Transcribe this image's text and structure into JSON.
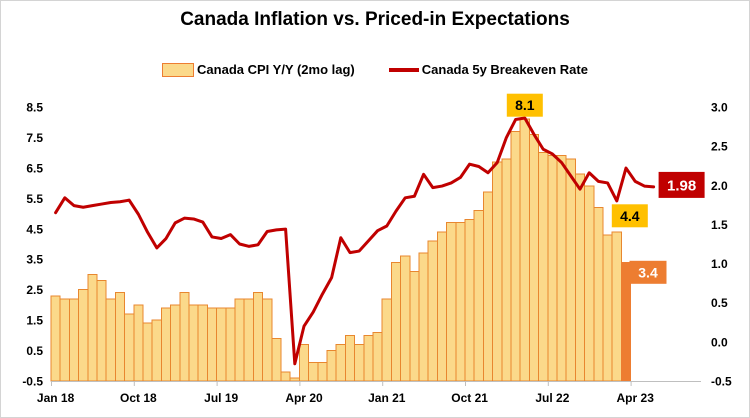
{
  "title": "Canada Inflation vs. Priced-in Expectations",
  "legend": [
    {
      "label": "Canada CPI Y/Y (2mo lag)",
      "type": "bar"
    },
    {
      "label": "Canada 5y Breakeven Rate",
      "type": "line"
    }
  ],
  "colors": {
    "bar_fill": "#FBD98A",
    "bar_border": "#E8872F",
    "bar_highlight": "#ED7D31",
    "line": "#C00000",
    "gold_label_bg": "#FFC000",
    "axis_line": "#BFBFBF",
    "text": "#000000",
    "white": "#FFFFFF"
  },
  "chart_data": {
    "type": "bar+line combo, monthly",
    "title": "Canada Inflation vs. Priced-in Expectations",
    "x_tick_labels": [
      "Jan 18",
      "Oct 18",
      "Jul 19",
      "Apr 20",
      "Jan 21",
      "Oct 21",
      "Jul 22",
      "Apr 23"
    ],
    "x_ticks_every_n_months": 9,
    "grid": "none",
    "legend_position": "top",
    "left_axis": {
      "min": -0.5,
      "max": 8.5,
      "ticks": [
        8.5,
        7.5,
        6.5,
        5.5,
        4.5,
        3.5,
        2.5,
        1.5,
        0.5,
        -0.5
      ]
    },
    "right_axis": {
      "min": -0.5,
      "max": 3.0,
      "ticks": [
        3.0,
        2.5,
        2.0,
        1.5,
        1.0,
        0.5,
        0.0,
        -0.5
      ]
    },
    "series": [
      {
        "name": "Canada CPI Y/Y (2mo lag)",
        "type": "bar",
        "axis": "left",
        "baseline": -0.5,
        "start_slot": 0,
        "values": [
          2.3,
          2.2,
          2.2,
          2.5,
          3.0,
          2.8,
          2.2,
          2.4,
          1.7,
          2.0,
          1.4,
          1.5,
          1.9,
          2.0,
          2.4,
          2.0,
          2.0,
          1.9,
          1.9,
          1.9,
          2.2,
          2.2,
          2.4,
          2.2,
          0.9,
          -0.2,
          -0.4,
          0.7,
          0.1,
          0.1,
          0.5,
          0.7,
          1.0,
          0.7,
          1.0,
          1.1,
          2.2,
          3.4,
          3.6,
          3.1,
          3.7,
          4.1,
          4.4,
          4.7,
          4.7,
          4.8,
          5.1,
          5.7,
          6.7,
          6.8,
          7.7,
          8.1,
          7.6,
          7.0,
          6.9,
          6.9,
          6.8,
          6.3,
          5.9,
          5.2,
          4.3,
          4.4,
          3.4
        ],
        "highlight_last_bar": true
      },
      {
        "name": "Canada 5y Breakeven Rate",
        "type": "line",
        "axis": "right",
        "start_slot": 0,
        "values": [
          1.65,
          1.84,
          1.74,
          1.72,
          1.74,
          1.76,
          1.78,
          1.79,
          1.81,
          1.63,
          1.4,
          1.2,
          1.32,
          1.52,
          1.58,
          1.57,
          1.53,
          1.34,
          1.32,
          1.37,
          1.25,
          1.22,
          1.24,
          1.41,
          1.43,
          1.44,
          -0.28,
          0.2,
          0.38,
          0.61,
          0.82,
          1.33,
          1.14,
          1.16,
          1.29,
          1.42,
          1.48,
          1.67,
          1.84,
          1.86,
          2.14,
          1.97,
          1.99,
          2.03,
          2.1,
          2.27,
          2.24,
          2.16,
          2.29,
          2.61,
          2.84,
          2.86,
          2.65,
          2.46,
          2.4,
          2.29,
          2.12,
          1.95,
          2.16,
          2.05,
          2.03,
          1.8,
          2.22,
          2.05,
          1.99,
          1.98
        ]
      }
    ],
    "annotations": [
      {
        "text": "8.1",
        "series": "bar",
        "index": 51,
        "placement": "above",
        "style": "gold"
      },
      {
        "text": "4.4",
        "series": "bar",
        "index": 61,
        "placement": "above-right",
        "style": "gold"
      },
      {
        "text": "3.4",
        "series": "bar",
        "index": 62,
        "placement": "right",
        "style": "orange"
      },
      {
        "text": "1.98",
        "series": "line",
        "index": 65,
        "placement": "right",
        "style": "darkred"
      }
    ]
  }
}
